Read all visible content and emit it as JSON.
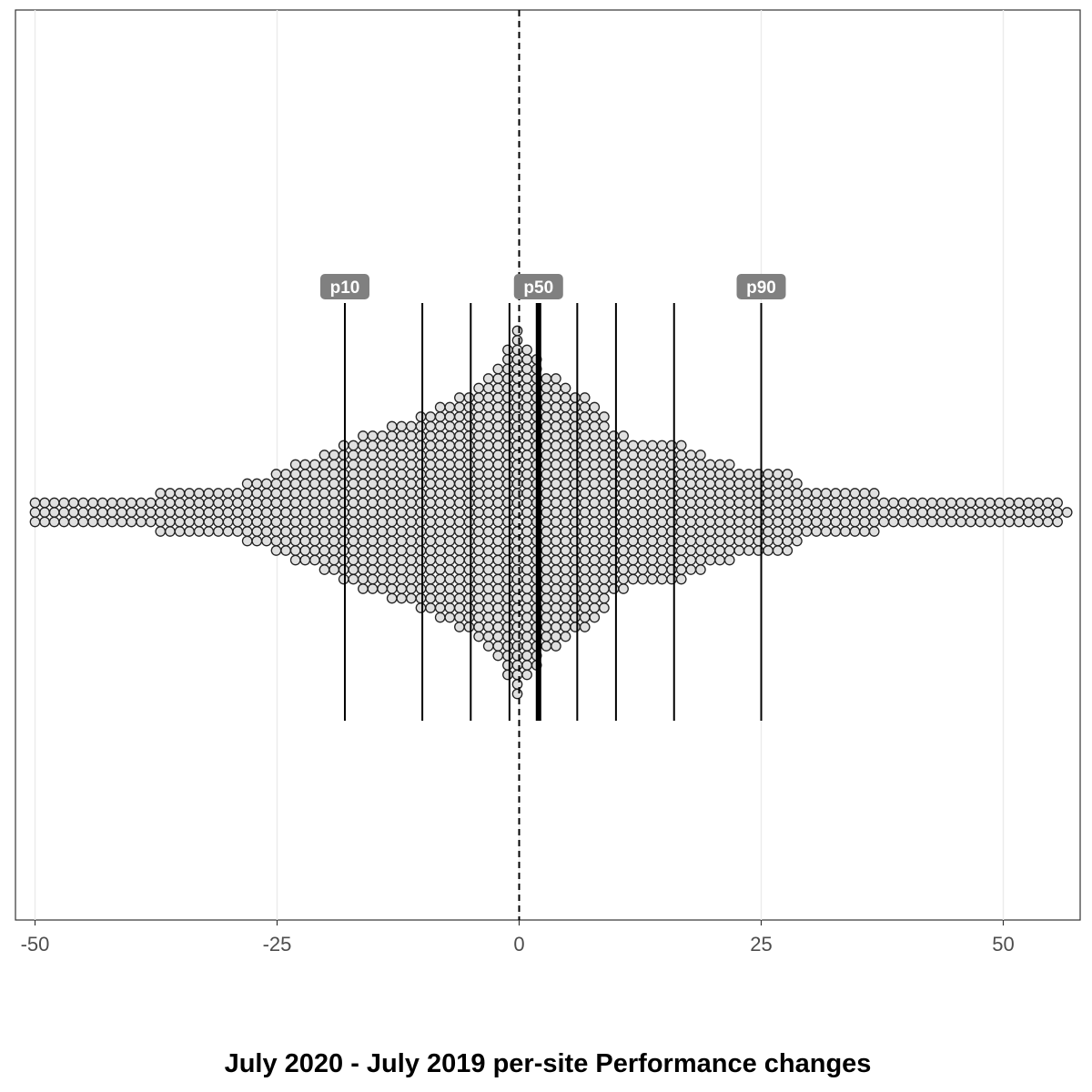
{
  "chart_data": {
    "type": "dotplot",
    "xlabel": "July 2020 - July 2019 per-site Performance changes",
    "xlim": [
      -51,
      59
    ],
    "x_ticks": [
      -50,
      -25,
      0,
      25,
      50
    ],
    "x_tick_labels": [
      "-50",
      "-25",
      "0",
      "25",
      "50"
    ],
    "grid": "vertical-major",
    "reference_line": {
      "x": 0,
      "style": "dashed"
    },
    "percentile_lines": [
      {
        "label": "p10",
        "x": -18
      },
      {
        "label": "",
        "x": -10
      },
      {
        "label": "",
        "x": -5
      },
      {
        "label": "",
        "x": -1
      },
      {
        "label": "p50",
        "x": 2
      },
      {
        "label": "",
        "x": 6
      },
      {
        "label": "",
        "x": 10
      },
      {
        "label": "",
        "x": 16
      },
      {
        "label": "p90",
        "x": 25
      }
    ],
    "distribution_halfwidth_by_x": [
      [
        -51,
        0
      ],
      [
        -50,
        1
      ],
      [
        -45,
        1
      ],
      [
        -40,
        1
      ],
      [
        -35,
        2
      ],
      [
        -30,
        2
      ],
      [
        -27,
        3
      ],
      [
        -25,
        4
      ],
      [
        -22,
        5
      ],
      [
        -20,
        6
      ],
      [
        -18,
        7
      ],
      [
        -15,
        8
      ],
      [
        -12,
        9
      ],
      [
        -10,
        10
      ],
      [
        -8,
        11
      ],
      [
        -5,
        12
      ],
      [
        -3,
        14
      ],
      [
        -1,
        17
      ],
      [
        0,
        19
      ],
      [
        1,
        17
      ],
      [
        2,
        16
      ],
      [
        3,
        14
      ],
      [
        5,
        13
      ],
      [
        6,
        12
      ],
      [
        8,
        11
      ],
      [
        10,
        8
      ],
      [
        12,
        7
      ],
      [
        16,
        7
      ],
      [
        20,
        5
      ],
      [
        25,
        4
      ],
      [
        28,
        4
      ],
      [
        30,
        2
      ],
      [
        35,
        2
      ],
      [
        40,
        1
      ],
      [
        45,
        1
      ],
      [
        50,
        1
      ],
      [
        55,
        1
      ],
      [
        57,
        0
      ]
    ],
    "colors": {
      "dot_fill": "#e0e0e0",
      "dot_stroke": "#222222",
      "label_bg": "#808080",
      "label_text": "#ffffff"
    }
  }
}
